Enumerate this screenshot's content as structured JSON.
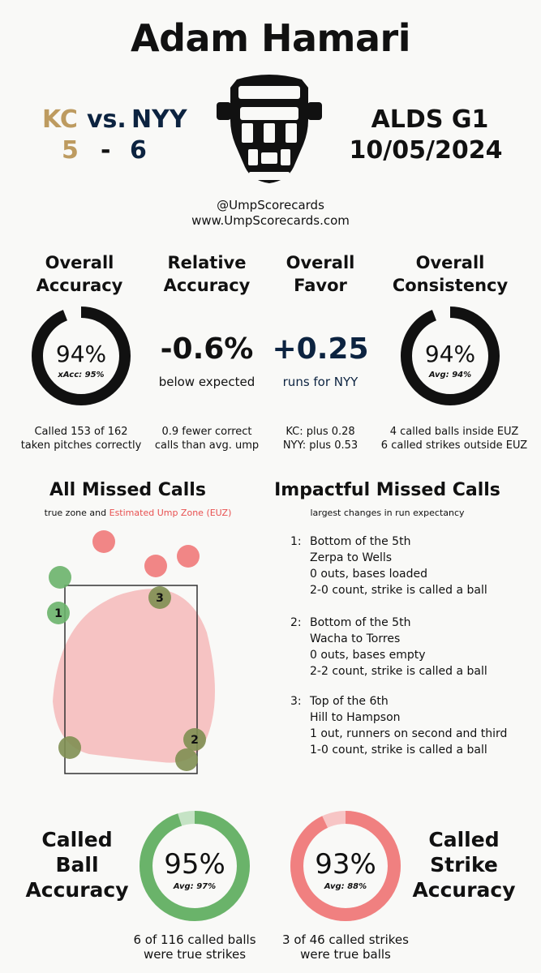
{
  "title": "Adam Hamari",
  "matchup": {
    "away_team": "KC",
    "vs": "vs.",
    "home_team": "NYY",
    "away_score": "5",
    "dash": "-",
    "home_score": "6"
  },
  "game": {
    "series": "ALDS G1",
    "date": "10/05/2024"
  },
  "credits": {
    "handle": "@UmpScorecards",
    "site": "www.UmpScorecards.com"
  },
  "overall_accuracy": {
    "label_line1": "Overall",
    "label_line2": "Accuracy",
    "value": "94%",
    "sub": "xAcc: 95%",
    "note_line1": "Called 153 of 162",
    "note_line2": "taken pitches correctly",
    "fill_fraction": 0.94
  },
  "relative_accuracy": {
    "label_line1": "Relative",
    "label_line2": "Accuracy",
    "value": "-0.6%",
    "sub": "below expected",
    "note_line1": "0.9 fewer correct",
    "note_line2": "calls than avg. ump"
  },
  "overall_favor": {
    "label_line1": "Overall",
    "label_line2": "Favor",
    "value": "+0.25",
    "sub": "runs for NYY",
    "note_line1": "KC: plus 0.28",
    "note_line2": "NYY: plus 0.53"
  },
  "overall_consistency": {
    "label_line1": "Overall",
    "label_line2": "Consistency",
    "value": "94%",
    "sub": "Avg: 94%",
    "note_line1": "4 called balls inside EUZ",
    "note_line2": "6 called strikes outside EUZ",
    "fill_fraction": 0.94
  },
  "missed_calls": {
    "title": "All Missed Calls",
    "legend_prefix": "true zone and",
    "legend_euz": "Estimated Ump Zone (EUZ)",
    "colors": {
      "strike": "#f08080",
      "ball": "#6ab36a",
      "euz": "#f5b5b5"
    },
    "markers": [
      "1",
      "2",
      "3"
    ]
  },
  "impactful": {
    "title": "Impactful Missed Calls",
    "subtitle": "largest changes in run expectancy",
    "items": [
      {
        "num": "1:",
        "inning": "Bottom of the 5th",
        "matchup": "Zerpa to Wells",
        "situation": "0 outs, bases loaded",
        "call": "2-0 count, strike is called a ball"
      },
      {
        "num": "2:",
        "inning": "Bottom of the 5th",
        "matchup": "Wacha to Torres",
        "situation": "0 outs, bases empty",
        "call": "2-2 count, strike is called a ball"
      },
      {
        "num": "3:",
        "inning": "Top of the 6th",
        "matchup": "Hill to Hampson",
        "situation": "1 out, runners on second and third",
        "call": "1-0 count, strike is called a ball"
      }
    ]
  },
  "called_ball": {
    "label_line1": "Called",
    "label_line2": "Ball",
    "label_line3": "Accuracy",
    "value": "95%",
    "sub": "Avg: 97%",
    "note_line1": "6 of 116 called balls",
    "note_line2": "were true strikes",
    "fill_fraction": 0.95,
    "color": "#6ab36a",
    "track_color": "#c5e3c5"
  },
  "called_strike": {
    "label_line1": "Called",
    "label_line2": "Strike",
    "label_line3": "Accuracy",
    "value": "93%",
    "sub": "Avg: 88%",
    "note_line1": "3 of 46 called strikes",
    "note_line2": "were true balls",
    "fill_fraction": 0.93,
    "color": "#f08080",
    "track_color": "#f7c5c5"
  }
}
